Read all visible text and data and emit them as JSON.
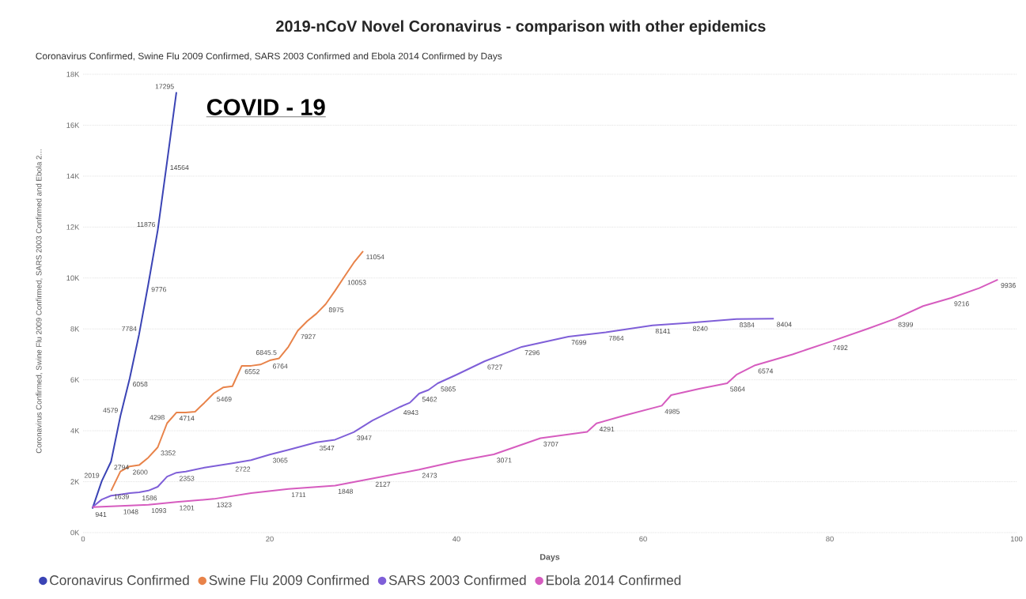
{
  "chart_data": {
    "type": "line",
    "title": "2019-nCoV Novel Coronavirus - comparison with other epidemics",
    "subtitle": "Coronavirus Confirmed, Swine Flu 2009 Confirmed, SARS 2003 Confirmed and Ebola 2014 Confirmed by Days",
    "xlabel": "Days",
    "ylabel": "Coronavirus Confirmed, Swine Flu 2009 Confirmed, SARS 2003 Confirmed and Ebola 2...",
    "annotations": [
      "COVID - 19"
    ],
    "xlim": [
      0,
      100
    ],
    "xticks": [
      0,
      20,
      40,
      60,
      80,
      100
    ],
    "ylim": [
      0,
      18000
    ],
    "yticks": [
      {
        "value": 0,
        "label": "0K"
      },
      {
        "value": 2000,
        "label": "2K"
      },
      {
        "value": 4000,
        "label": "4K"
      },
      {
        "value": 6000,
        "label": "6K"
      },
      {
        "value": 8000,
        "label": "8K"
      },
      {
        "value": 10000,
        "label": "10K"
      },
      {
        "value": 12000,
        "label": "12K"
      },
      {
        "value": 14000,
        "label": "14K"
      },
      {
        "value": 16000,
        "label": "16K"
      },
      {
        "value": 18000,
        "label": "18K"
      }
    ],
    "grid": "y",
    "legend": "bottom",
    "line_style": "solid",
    "series": [
      {
        "name": "Coronavirus Confirmed",
        "color": "#3b44b5",
        "x": [
          1,
          2,
          3,
          4,
          5,
          6,
          7,
          8,
          9,
          10
        ],
        "values": [
          941,
          2019,
          2794,
          4579,
          6058,
          7784,
          9776,
          11876,
          14564,
          17295
        ],
        "value_labels": [
          "941",
          "2019",
          "2794",
          "4579",
          "6058",
          "7784",
          "9776",
          "11876",
          "14564",
          "17295"
        ]
      },
      {
        "name": "Swine Flu 2009 Confirmed",
        "color": "#e8834a",
        "x": [
          3,
          4,
          5,
          6,
          7,
          8,
          9,
          10,
          11,
          12,
          13,
          14,
          15,
          16,
          17,
          18,
          19,
          20,
          21,
          22,
          23,
          24,
          25,
          26,
          27,
          28,
          29,
          30
        ],
        "values": [
          1639,
          2400,
          2600,
          2650,
          2950,
          3352,
          4298,
          4714,
          4714,
          4750,
          5100,
          5469,
          5700,
          5750,
          6552,
          6552,
          6600,
          6764,
          6845.5,
          7300,
          7927,
          8300,
          8600,
          8975,
          9500,
          10053,
          10600,
          11054
        ],
        "value_labels": [
          "1639",
          null,
          "2600",
          null,
          null,
          "3352",
          "4298",
          "4714",
          null,
          null,
          null,
          "5469",
          null,
          null,
          "6552",
          null,
          null,
          "6764",
          "6845.5",
          null,
          "7927",
          null,
          null,
          "8975",
          null,
          "10053",
          null,
          "11054"
        ]
      },
      {
        "name": "SARS 2003 Confirmed",
        "color": "#7f5fd8",
        "x": [
          1,
          2,
          3,
          4,
          5,
          6,
          7,
          8,
          9,
          10,
          11,
          13,
          16,
          18,
          20,
          22,
          25,
          27,
          29,
          31,
          34,
          35,
          36,
          37,
          38,
          40,
          43,
          47,
          52,
          56,
          61,
          65,
          70,
          74
        ],
        "values": [
          1000,
          1300,
          1450,
          1500,
          1550,
          1586,
          1650,
          1800,
          2200,
          2353,
          2400,
          2550,
          2722,
          2850,
          3065,
          3250,
          3547,
          3650,
          3947,
          4400,
          4943,
          5100,
          5462,
          5600,
          5865,
          6200,
          6727,
          7296,
          7699,
          7864,
          8141,
          8240,
          8384,
          8404
        ],
        "value_labels": [
          null,
          null,
          null,
          null,
          null,
          "1586",
          null,
          null,
          null,
          "2353",
          null,
          null,
          "2722",
          null,
          "3065",
          null,
          "3547",
          null,
          "3947",
          null,
          "4943",
          null,
          "5462",
          null,
          "5865",
          null,
          "6727",
          "7296",
          "7699",
          "7864",
          "8141",
          "8240",
          "8384",
          "8404"
        ]
      },
      {
        "name": "Ebola 2014 Confirmed",
        "color": "#d65cbf",
        "x": [
          1,
          4,
          7,
          10,
          14,
          18,
          22,
          27,
          31,
          36,
          40,
          44,
          49,
          54,
          55,
          58,
          62,
          63,
          66,
          69,
          70,
          72,
          76,
          80,
          84,
          87,
          90,
          93,
          96,
          98
        ],
        "values": [
          1000,
          1048,
          1093,
          1201,
          1323,
          1550,
          1711,
          1848,
          2127,
          2473,
          2800,
          3071,
          3707,
          3960,
          4291,
          4600,
          4985,
          5400,
          5650,
          5864,
          6200,
          6574,
          7000,
          7492,
          8000,
          8399,
          8900,
          9216,
          9600,
          9936
        ],
        "value_labels": [
          null,
          "1048",
          "1093",
          "1201",
          "1323",
          null,
          "1711",
          "1848",
          "2127",
          "2473",
          null,
          "3071",
          "3707",
          null,
          "4291",
          null,
          "4985",
          null,
          null,
          "5864",
          null,
          "6574",
          null,
          "7492",
          null,
          "8399",
          null,
          "9216",
          null,
          "9936"
        ]
      }
    ]
  }
}
